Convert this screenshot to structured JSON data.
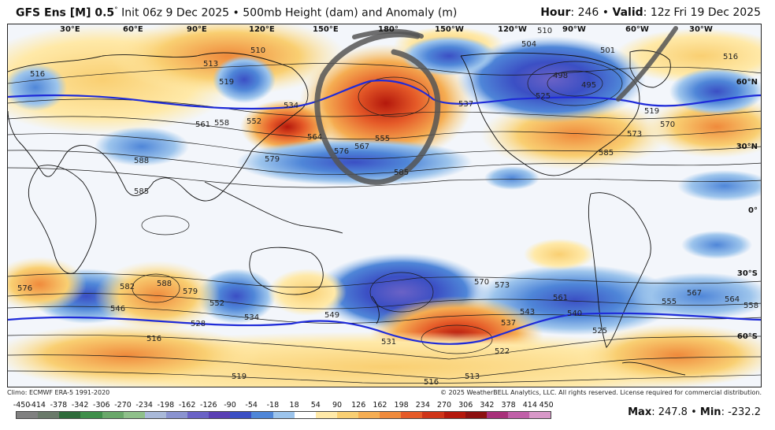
{
  "header": {
    "model": "GFS Ens [M] 0.5",
    "degree": "°",
    "init": "Init 06z 9 Dec 2025",
    "bullet": "•",
    "field": "500mb Height (dam) and Anomaly (m)",
    "hour_label": "Hour",
    "hour_value": "246",
    "valid_label": "Valid",
    "valid_value": "12z Fri 19 Dec 2025"
  },
  "map": {
    "longitude_labels": [
      "30°E",
      "60°E",
      "90°E",
      "120°E",
      "150°E",
      "180°",
      "150°W",
      "120°W",
      "90°W",
      "60°W",
      "30°W"
    ],
    "latitude_labels": [
      "60°N",
      "30°N",
      "0°",
      "30°S",
      "60°S"
    ],
    "contour_labels": [
      "510",
      "513",
      "519",
      "516",
      "504",
      "510",
      "501",
      "498",
      "495",
      "516",
      "537",
      "525",
      "519",
      "534",
      "561",
      "558",
      "552",
      "564",
      "570",
      "573",
      "576",
      "567",
      "555",
      "585",
      "579",
      "588",
      "585",
      "585",
      "576",
      "582",
      "588",
      "579",
      "552",
      "546",
      "534",
      "528",
      "516",
      "549",
      "531",
      "522",
      "513",
      "516",
      "519",
      "540",
      "543",
      "537",
      "561",
      "567",
      "570",
      "573",
      "555",
      "564",
      "558",
      "525"
    ],
    "colors": {
      "ocean": "#f3f6fb",
      "positive_anomaly": "#e0502a",
      "negative_anomaly": "#2b5fbf",
      "ref_line": "#1f2bd8",
      "annotation": "#555555"
    }
  },
  "footer": {
    "climo": "Climo: ECMWF ERA-5 1991-2020",
    "copyright": "© 2025 WeatherBELL Analytics, LLC. All rights reserved. License required for commercial distribution.",
    "logo_text": "WeatherBELL"
  },
  "colorbar": {
    "ticks": [
      "-450",
      "-414",
      "-378",
      "-342",
      "-306",
      "-270",
      "-234",
      "-198",
      "-162",
      "-126",
      "-90",
      "-54",
      "-18",
      "18",
      "54",
      "90",
      "126",
      "162",
      "198",
      "234",
      "270",
      "306",
      "342",
      "378",
      "414",
      "450"
    ],
    "colors": [
      "#808080",
      "#6a7a6a",
      "#2e6b3a",
      "#3f8f4a",
      "#6aa86a",
      "#8fc08a",
      "#a9b9d9",
      "#8a93d0",
      "#6a62c6",
      "#5a3fb4",
      "#3b4fc4",
      "#4f86d8",
      "#9cc4ec",
      "#ffffff",
      "#ffe9a8",
      "#f9cf72",
      "#f5ad52",
      "#ef8a3c",
      "#e55a28",
      "#cf3418",
      "#b4180c",
      "#8c1010",
      "#a8307a",
      "#c060a8",
      "#d898c8"
    ]
  },
  "stats": {
    "max_label": "Max",
    "max_value": "247.8",
    "min_label": "Min",
    "min_value": "-232.2"
  }
}
